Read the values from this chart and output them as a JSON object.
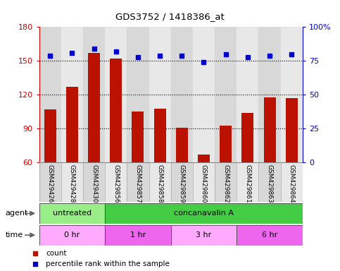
{
  "title": "GDS3752 / 1418386_at",
  "samples": [
    "GSM429426",
    "GSM429428",
    "GSM429430",
    "GSM429856",
    "GSM429857",
    "GSM429858",
    "GSM429859",
    "GSM429860",
    "GSM429862",
    "GSM429861",
    "GSM429863",
    "GSM429864"
  ],
  "counts": [
    107,
    127,
    157,
    152,
    105,
    108,
    91,
    67,
    93,
    104,
    118,
    117
  ],
  "percentile_ranks": [
    79,
    81,
    84,
    82,
    78,
    79,
    79,
    74,
    80,
    78,
    79,
    80
  ],
  "ylim_left": [
    60,
    180
  ],
  "ylim_right": [
    0,
    100
  ],
  "yticks_left": [
    60,
    90,
    120,
    150,
    180
  ],
  "yticks_right": [
    0,
    25,
    50,
    75,
    100
  ],
  "bar_color": "#bb1100",
  "dot_color": "#0000cc",
  "plot_bg": "#ffffff",
  "agent_groups": [
    {
      "label": "untreated",
      "start": 0,
      "end": 3,
      "color": "#99ee88"
    },
    {
      "label": "concanavalin A",
      "start": 3,
      "end": 12,
      "color": "#44cc44"
    }
  ],
  "time_groups": [
    {
      "label": "0 hr",
      "start": 0,
      "end": 3,
      "color": "#ffaaff"
    },
    {
      "label": "1 hr",
      "start": 3,
      "end": 6,
      "color": "#ee66ee"
    },
    {
      "label": "3 hr",
      "start": 6,
      "end": 9,
      "color": "#ffaaff"
    },
    {
      "label": "6 hr",
      "start": 9,
      "end": 12,
      "color": "#ee66ee"
    }
  ],
  "col_bg_even": "#d8d8d8",
  "col_bg_odd": "#e8e8e8",
  "dotted_line_color": "#000000",
  "dotted_ticks": [
    90,
    120,
    150
  ],
  "left_tick_color": "#cc0000",
  "right_tick_color": "#0000cc",
  "legend": [
    {
      "label": "count",
      "color": "#bb1100"
    },
    {
      "label": "percentile rank within the sample",
      "color": "#0000cc"
    }
  ]
}
